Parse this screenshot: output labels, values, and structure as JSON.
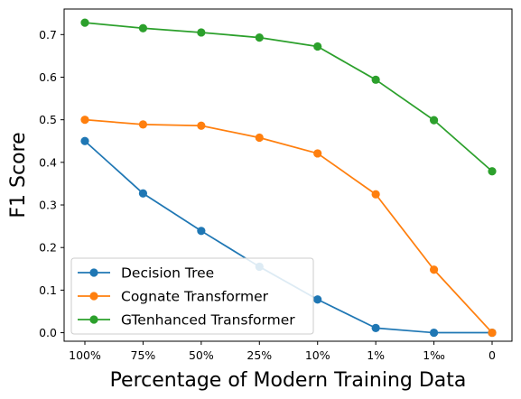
{
  "chart_data": {
    "type": "line",
    "title": "",
    "xlabel": "Percentage of Modern Training Data",
    "ylabel": "F1 Score",
    "categories": [
      "100%",
      "75%",
      "50%",
      "25%",
      "10%",
      "1%",
      "1‰",
      "0"
    ],
    "ylim": [
      -0.02,
      0.76
    ],
    "yticks": [
      0.0,
      0.1,
      0.2,
      0.3,
      0.4,
      0.5,
      0.6,
      0.7
    ],
    "ytick_labels": [
      "0.0",
      "0.1",
      "0.2",
      "0.3",
      "0.4",
      "0.5",
      "0.6",
      "0.7"
    ],
    "grid": false,
    "legend_position": "bottom-left",
    "series": [
      {
        "name": "Decision Tree",
        "color": "#1f77b4",
        "values": [
          0.45,
          0.327,
          0.239,
          0.155,
          0.078,
          0.011,
          0.0,
          0.0
        ]
      },
      {
        "name": "Cognate Transformer",
        "color": "#ff7f0e",
        "values": [
          0.5,
          0.489,
          0.486,
          0.458,
          0.421,
          0.325,
          0.148,
          0.0
        ]
      },
      {
        "name": "GTenhanced Transformer",
        "color": "#2ca02c",
        "values": [
          0.728,
          0.715,
          0.705,
          0.693,
          0.672,
          0.594,
          0.499,
          0.379
        ]
      }
    ]
  }
}
